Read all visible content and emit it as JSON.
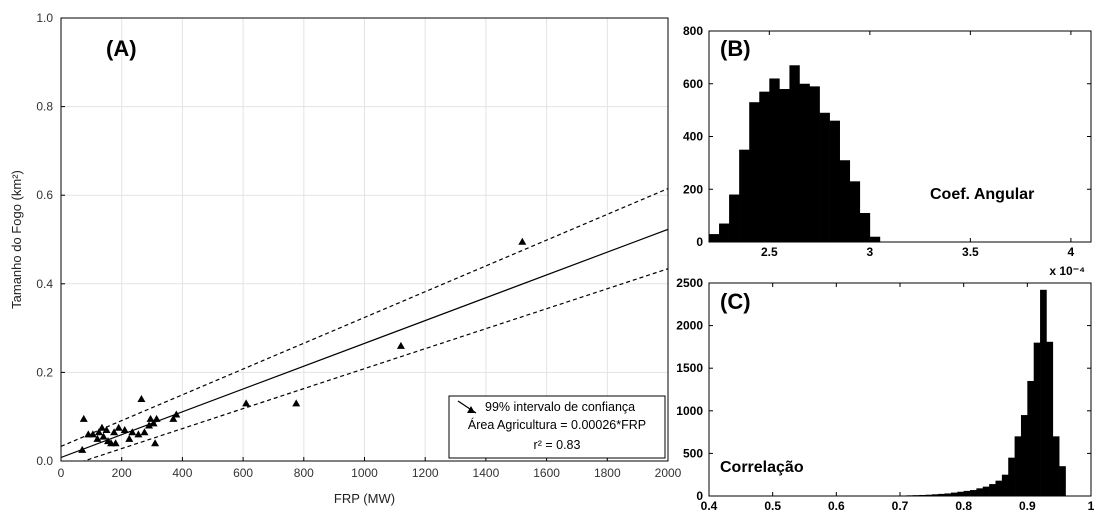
{
  "chart_data": [
    {
      "type": "scatter",
      "panel_label": "(A)",
      "xlabel": "FRP (MW)",
      "ylabel": "Tamanho do Fogo (km²)",
      "xlim": [
        0,
        2000
      ],
      "ylim": [
        0,
        1.0
      ],
      "x_ticks": [
        "0",
        "200",
        "400",
        "600",
        "800",
        "1000",
        "1200",
        "1400",
        "1600",
        "1800",
        "2000"
      ],
      "y_ticks": [
        "0.0",
        "0.2",
        "0.4",
        "0.6",
        "0.8",
        "1.0"
      ],
      "grid": true,
      "points": [
        {
          "x": 70,
          "y": 0.025
        },
        {
          "x": 75,
          "y": 0.095
        },
        {
          "x": 90,
          "y": 0.06
        },
        {
          "x": 105,
          "y": 0.06
        },
        {
          "x": 120,
          "y": 0.05
        },
        {
          "x": 125,
          "y": 0.065
        },
        {
          "x": 135,
          "y": 0.075
        },
        {
          "x": 140,
          "y": 0.055
        },
        {
          "x": 150,
          "y": 0.07
        },
        {
          "x": 155,
          "y": 0.045
        },
        {
          "x": 165,
          "y": 0.04
        },
        {
          "x": 175,
          "y": 0.065
        },
        {
          "x": 180,
          "y": 0.04
        },
        {
          "x": 190,
          "y": 0.075
        },
        {
          "x": 210,
          "y": 0.07
        },
        {
          "x": 225,
          "y": 0.05
        },
        {
          "x": 235,
          "y": 0.065
        },
        {
          "x": 255,
          "y": 0.06
        },
        {
          "x": 265,
          "y": 0.14
        },
        {
          "x": 275,
          "y": 0.065
        },
        {
          "x": 290,
          "y": 0.08
        },
        {
          "x": 295,
          "y": 0.095
        },
        {
          "x": 305,
          "y": 0.085
        },
        {
          "x": 310,
          "y": 0.04
        },
        {
          "x": 315,
          "y": 0.095
        },
        {
          "x": 370,
          "y": 0.095
        },
        {
          "x": 380,
          "y": 0.105
        },
        {
          "x": 610,
          "y": 0.13
        },
        {
          "x": 775,
          "y": 0.13
        },
        {
          "x": 1120,
          "y": 0.26
        },
        {
          "x": 1520,
          "y": 0.495
        }
      ],
      "fit": {
        "x": [
          0,
          2000
        ],
        "y": [
          0.008,
          0.523
        ]
      },
      "ci_upper": {
        "x": [
          0,
          2000
        ],
        "y": [
          0.033,
          0.615
        ]
      },
      "ci_lower": {
        "x": [
          0,
          2000
        ],
        "y": [
          -0.017,
          0.434
        ]
      },
      "legend": {
        "position": "bottom-right",
        "entries": [
          "99% intervalo de confiança",
          "Área Agricultura = 0.00026*FRP",
          "r² = 0.83"
        ]
      }
    },
    {
      "type": "bar",
      "panel_label": "(B)",
      "annotation": "Coef. Angular",
      "xlim": [
        2.2,
        4.1
      ],
      "ylim": [
        0,
        800
      ],
      "x_ticks": [
        "2.5",
        "3",
        "3.5",
        "4"
      ],
      "y_ticks": [
        "0",
        "200",
        "400",
        "600",
        "800"
      ],
      "x_exponent": "x 10⁻⁴",
      "bin_start": 2.2,
      "bin_width": 0.05,
      "values": [
        30,
        70,
        180,
        350,
        530,
        570,
        620,
        580,
        670,
        600,
        590,
        490,
        460,
        310,
        230,
        110,
        20
      ]
    },
    {
      "type": "bar",
      "panel_label": "(C)",
      "annotation": "Correlação",
      "xlim": [
        0.4,
        1.0
      ],
      "ylim": [
        0,
        2500
      ],
      "x_ticks": [
        "0.4",
        "0.5",
        "0.6",
        "0.7",
        "0.8",
        "0.9",
        "1"
      ],
      "y_ticks": [
        "0",
        "500",
        "1000",
        "1500",
        "2000",
        "2500"
      ],
      "bin_start": 0.7,
      "bin_width": 0.01,
      "values": [
        5,
        8,
        10,
        12,
        15,
        20,
        25,
        30,
        40,
        50,
        60,
        70,
        90,
        110,
        140,
        180,
        250,
        450,
        700,
        950,
        1350,
        1800,
        2420,
        1810,
        700,
        350
      ]
    }
  ]
}
